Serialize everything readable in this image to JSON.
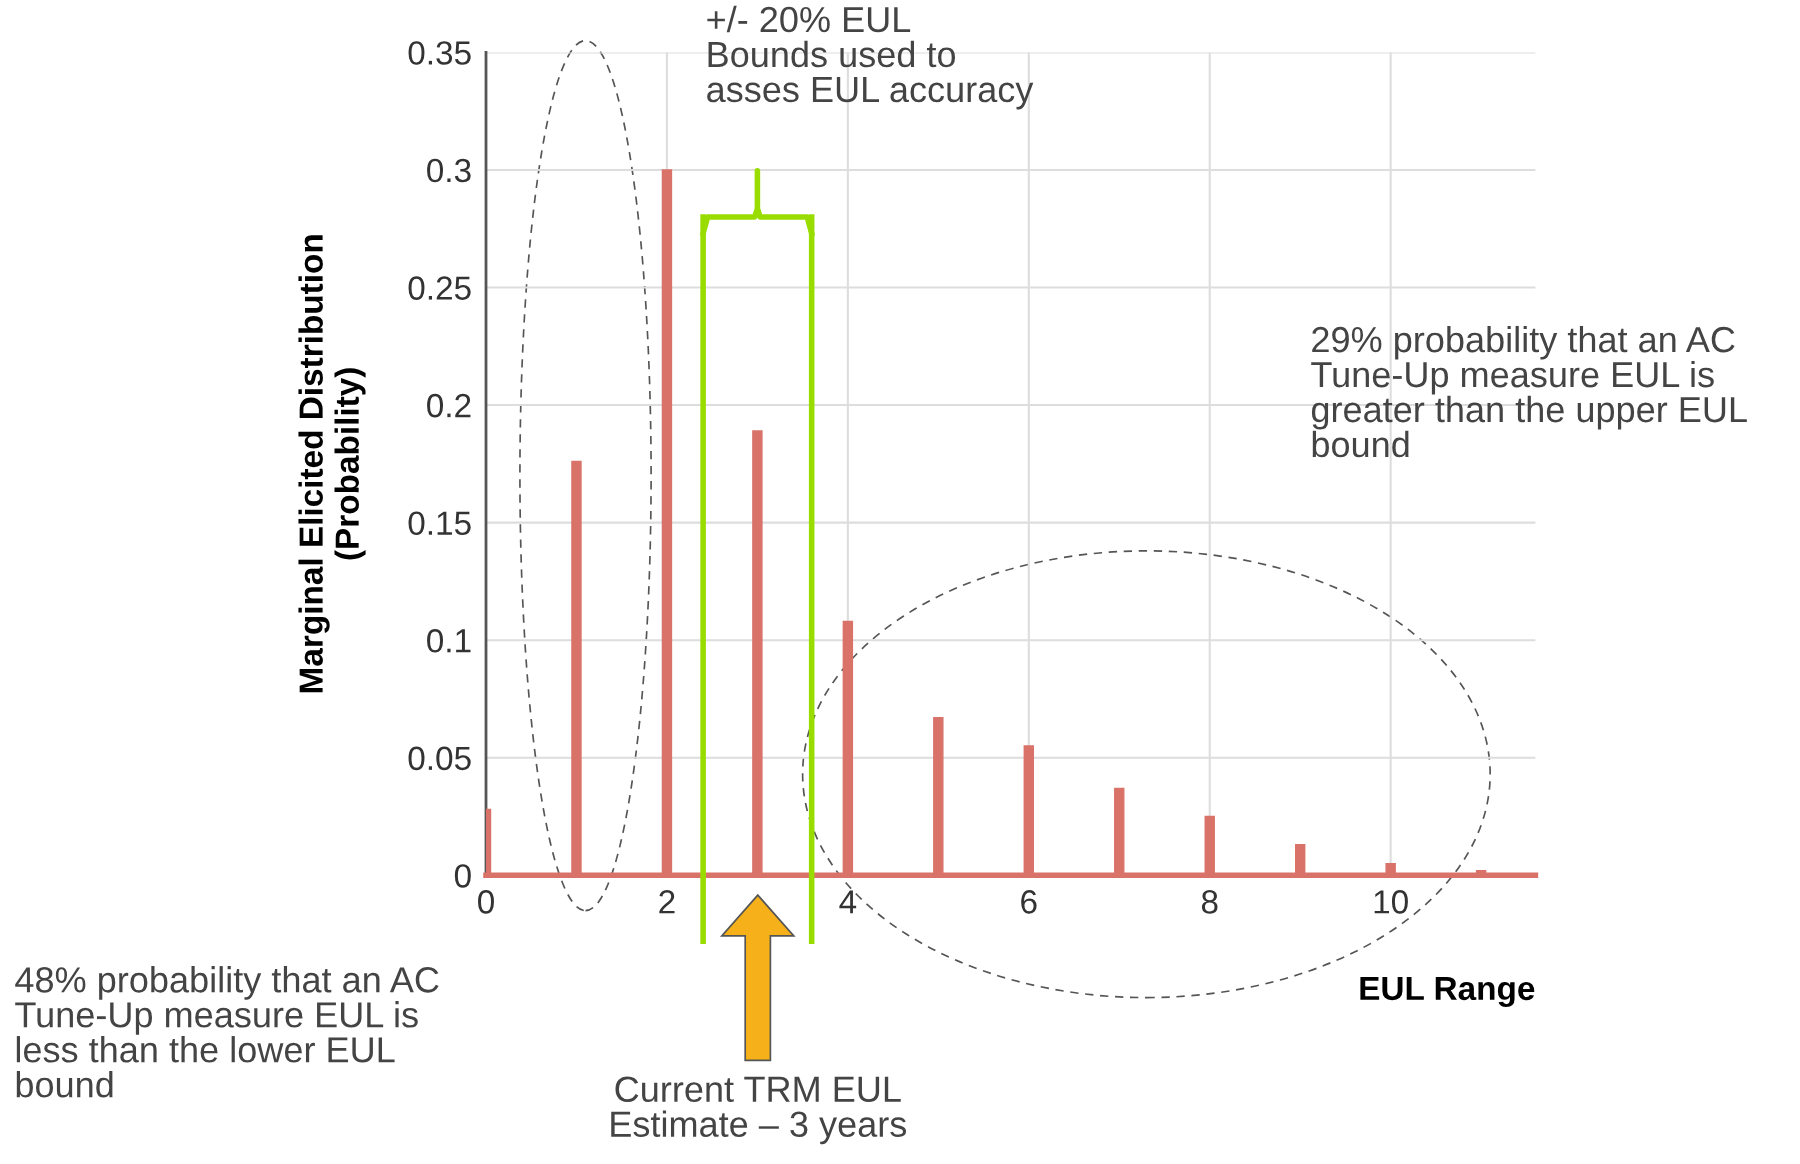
{
  "chart_data": {
    "type": "bar",
    "xlabel": "EUL Range",
    "ylabel": "Marginal Elicited Distribution\n(Probability)",
    "x": [
      0,
      1,
      2,
      3,
      4,
      5,
      6,
      7,
      8,
      9,
      10,
      11
    ],
    "values": [
      0.028,
      0.176,
      0.3,
      0.189,
      0.108,
      0.067,
      0.055,
      0.037,
      0.025,
      0.013,
      0.005,
      0.002
    ],
    "color": "#d9736a",
    "xlim": [
      0,
      11.6
    ],
    "xticks": [
      0,
      2,
      4,
      6,
      8,
      10
    ],
    "ylim": [
      0,
      0.35
    ],
    "yticks": [
      0,
      0.05,
      0.1,
      0.15,
      0.2,
      0.25,
      0.3,
      0.35
    ],
    "grid": true,
    "ref_lines": [
      {
        "axis": "x",
        "value": 2.4,
        "color": "#99dd00"
      },
      {
        "axis": "x",
        "value": 3.6,
        "color": "#99dd00"
      }
    ],
    "annotations": [
      "+/- 20% EUL\nBounds used to\nasses EUL accuracy",
      "29% probability that an AC\nTune-Up measure EUL is\ngreater than the upper EUL\nbound",
      "48% probability that an AC\nTune-Up measure EUL is\nless than the lower EUL\nbound",
      "Current TRM EUL\nEstimate – 3 years"
    ]
  }
}
